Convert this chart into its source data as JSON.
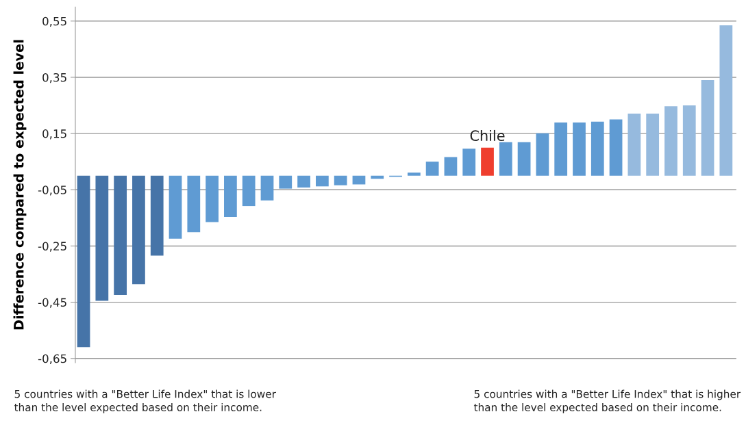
{
  "chart_data": {
    "type": "bar",
    "ylabel": "Difference compared to expected level",
    "categories": [
      null,
      null,
      null,
      null,
      null,
      null,
      null,
      null,
      null,
      null,
      null,
      null,
      null,
      null,
      null,
      null,
      null,
      null,
      null,
      null,
      null,
      null,
      "Chile",
      null,
      null,
      null,
      null,
      null,
      null,
      null,
      null,
      null,
      null,
      null,
      null,
      null
    ],
    "values": [
      -0.61,
      -0.445,
      -0.424,
      -0.386,
      -0.284,
      -0.224,
      -0.201,
      -0.165,
      -0.147,
      -0.108,
      -0.088,
      -0.046,
      -0.042,
      -0.038,
      -0.034,
      -0.031,
      -0.011,
      -0.004,
      0.011,
      0.05,
      0.066,
      0.096,
      0.1,
      0.119,
      0.119,
      0.151,
      0.189,
      0.189,
      0.192,
      0.2,
      0.221,
      0.221,
      0.247,
      0.25,
      0.34,
      0.535
    ],
    "colors": [
      "#4674a8",
      "#4674a8",
      "#4674a8",
      "#4674a8",
      "#4674a8",
      "#5f9bd3",
      "#5f9bd3",
      "#5f9bd3",
      "#5f9bd3",
      "#5f9bd3",
      "#5f9bd3",
      "#5f9bd3",
      "#5f9bd3",
      "#5f9bd3",
      "#5f9bd3",
      "#5f9bd3",
      "#5f9bd3",
      "#5f9bd3",
      "#5f9bd3",
      "#5f9bd3",
      "#5f9bd3",
      "#5f9bd3",
      "#ef3e2e",
      "#5f9bd3",
      "#5f9bd3",
      "#5f9bd3",
      "#5f9bd3",
      "#5f9bd3",
      "#5f9bd3",
      "#5f9bd3",
      "#96bade",
      "#96bade",
      "#96bade",
      "#96bade",
      "#96bade",
      "#96bade"
    ],
    "ylim": [
      -0.665,
      0.6
    ],
    "yticks": [
      {
        "value": 0.55,
        "label": "0,55"
      },
      {
        "value": 0.35,
        "label": "0,35"
      },
      {
        "value": 0.15,
        "label": "0,15"
      },
      {
        "value": -0.05,
        "label": "-0,05"
      },
      {
        "value": -0.25,
        "label": "-0,25"
      },
      {
        "value": -0.45,
        "label": "-0,45"
      },
      {
        "value": -0.65,
        "label": "-0,65"
      }
    ],
    "grid": "y",
    "annotations": [
      "5 countries with a \"Better Life Index\" that is lower than the level expected based on their income.",
      "5 countries with a \"Better Life Index\" that is higher than the level expected based on their income."
    ]
  }
}
